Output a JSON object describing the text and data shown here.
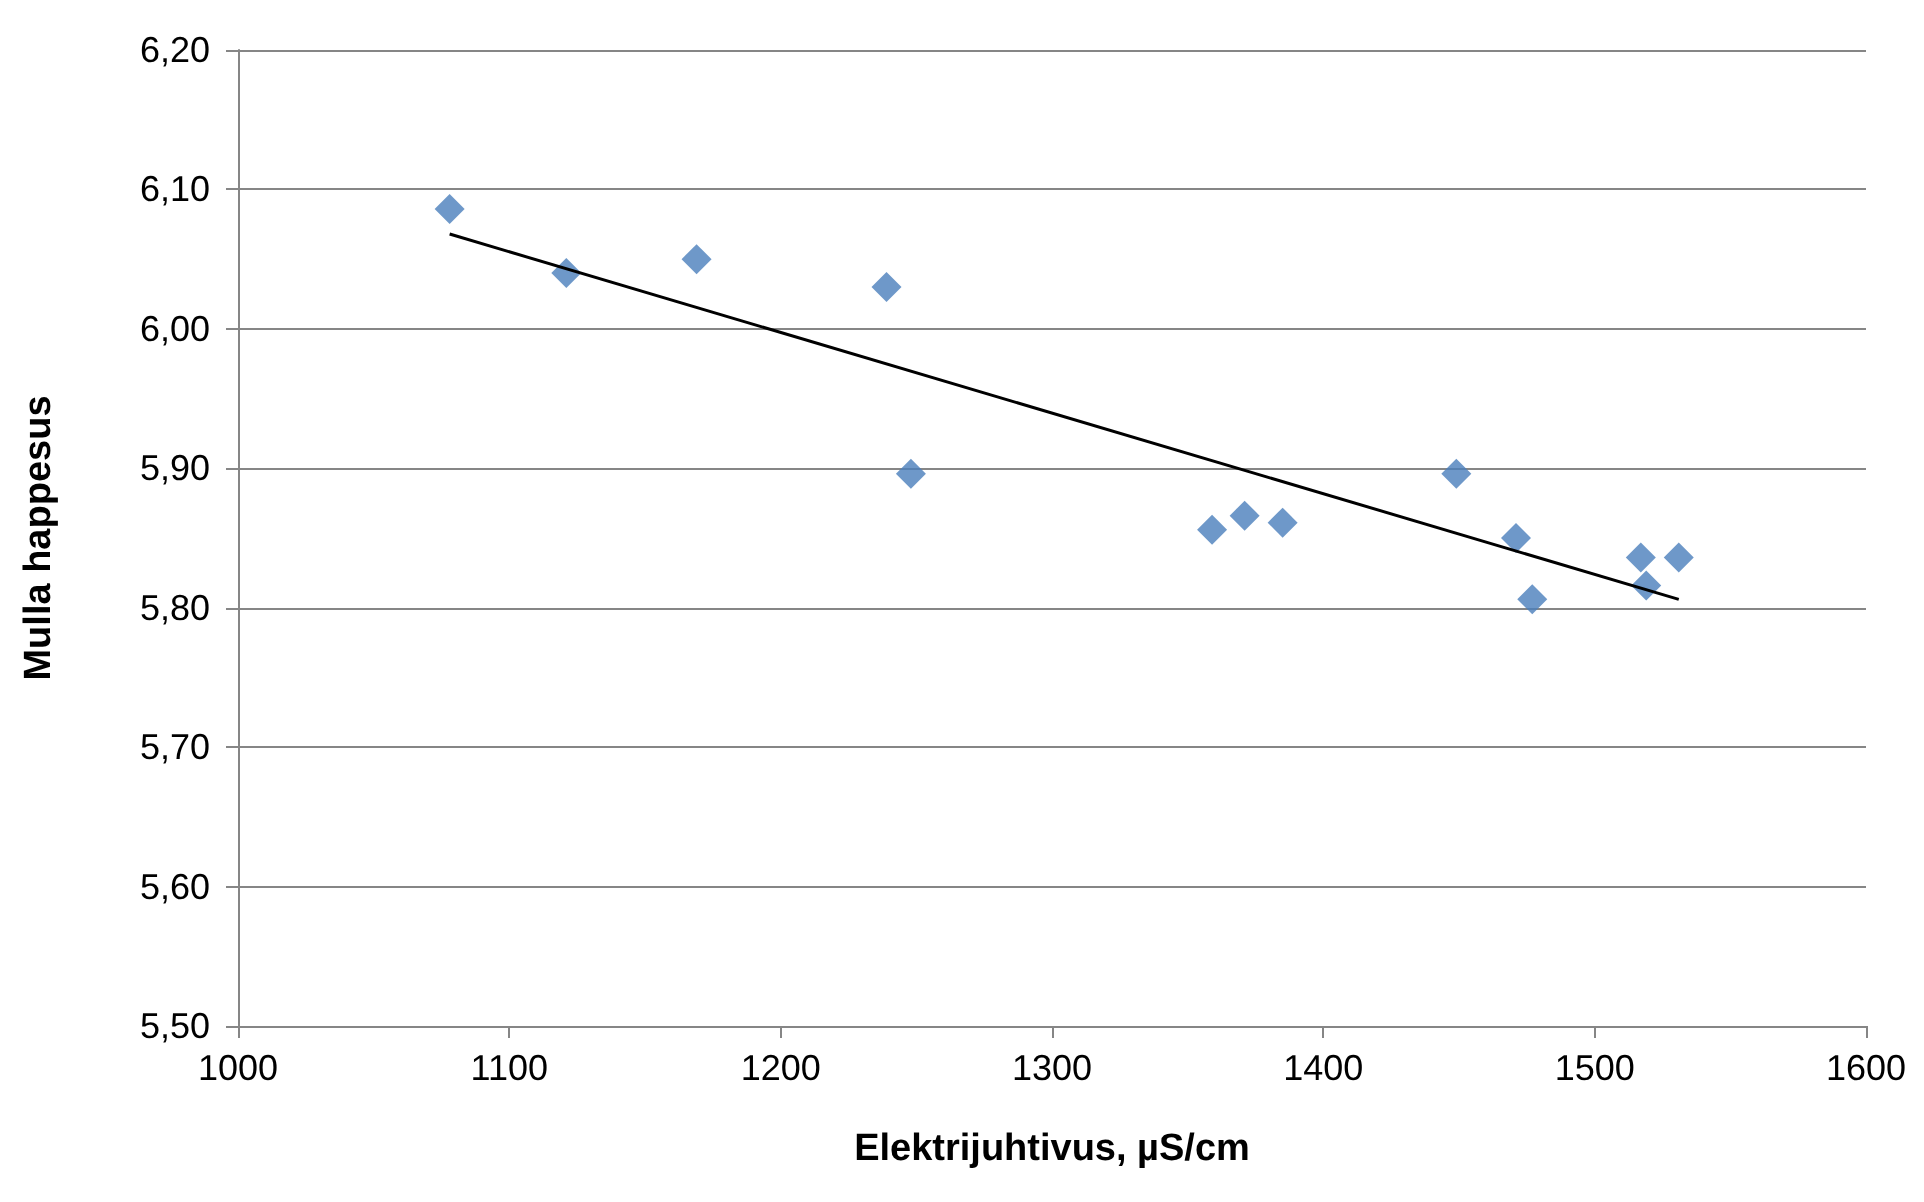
{
  "chart_data": {
    "type": "scatter",
    "xlabel": "Elektrijuhtivus, µS/cm",
    "ylabel": "Mulla happesus",
    "xlim": [
      1000,
      1600
    ],
    "xticks": [
      1000,
      1100,
      1200,
      1300,
      1400,
      1500,
      1600
    ],
    "ylim": [
      5.5,
      6.2
    ],
    "yticks": [
      {
        "value": 5.5,
        "label": "5,50"
      },
      {
        "value": 5.6,
        "label": "5,60"
      },
      {
        "value": 5.7,
        "label": "5,70"
      },
      {
        "value": 5.8,
        "label": "5,80"
      },
      {
        "value": 5.9,
        "label": "5,90"
      },
      {
        "value": 6.0,
        "label": "6,00"
      },
      {
        "value": 6.1,
        "label": "6,10"
      },
      {
        "value": 6.2,
        "label": "6,20"
      }
    ],
    "grid": "y",
    "marker": "diamond",
    "series": [
      {
        "color": "#4a7ebb",
        "x": [
          1078,
          1121,
          1169,
          1239,
          1248,
          1359,
          1371,
          1385,
          1449,
          1471,
          1477,
          1517,
          1519,
          1531
        ],
        "values": [
          6.086,
          6.04,
          6.05,
          6.03,
          5.896,
          5.856,
          5.866,
          5.861,
          5.896,
          5.85,
          5.806,
          5.836,
          5.816,
          5.836
        ]
      },
      {
        "type": "line",
        "color": "#000000",
        "marker": "none",
        "x": [
          1078,
          1531
        ],
        "values": [
          6.068,
          5.806
        ]
      }
    ]
  }
}
